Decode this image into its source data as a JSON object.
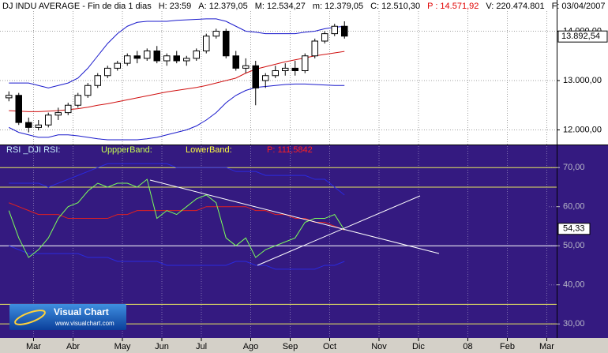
{
  "header": {
    "items": [
      {
        "text": "DJ INDU AVERAGE - Fin de dia 1 dias",
        "color": "#000000"
      },
      {
        "text": "H: 23:59",
        "color": "#000000"
      },
      {
        "text": "A: 12.379,05",
        "color": "#000000"
      },
      {
        "text": "M: 12.534,27",
        "color": "#000000"
      },
      {
        "text": "m: 12.379,05",
        "color": "#000000"
      },
      {
        "text": "C: 12.510,30",
        "color": "#000000"
      },
      {
        "text": "P : 14.571,92",
        "color": "#e00000"
      },
      {
        "text": "V: 220.474.801",
        "color": "#000000"
      },
      {
        "text": "F: 03/04/2007",
        "color": "#000000"
      }
    ]
  },
  "logo": {
    "title": "Visual Chart",
    "url": "www.visualchart.com"
  },
  "chart_data": [
    {
      "type": "candlestick",
      "open": [
        12650,
        12700,
        12150,
        12050,
        12100,
        12300,
        12350,
        12500,
        12700,
        12900,
        13100,
        13250,
        13350,
        13500,
        13450,
        13600,
        13400,
        13500,
        13400,
        13450,
        13600,
        13900,
        14000,
        13500,
        13250,
        13300,
        13000,
        13100,
        13200,
        13250,
        13200,
        13500,
        13800,
        13950,
        14100
      ],
      "high": [
        12780,
        12750,
        12250,
        12200,
        12350,
        12450,
        12550,
        12750,
        12950,
        13150,
        13300,
        13400,
        13550,
        13600,
        13650,
        13700,
        13550,
        13600,
        13500,
        13650,
        13950,
        14050,
        14050,
        13600,
        13450,
        13400,
        13150,
        13300,
        13350,
        13400,
        13550,
        13850,
        14000,
        14150,
        14200
      ],
      "low": [
        12580,
        12100,
        11950,
        11990,
        12050,
        12200,
        12300,
        12450,
        12650,
        12850,
        13050,
        13200,
        13300,
        13350,
        13400,
        13350,
        13300,
        13350,
        13300,
        13400,
        13550,
        13850,
        13450,
        13200,
        13150,
        12500,
        12850,
        13050,
        13100,
        13100,
        13150,
        13450,
        13750,
        13900,
        13850
      ],
      "close": [
        12700,
        12150,
        12050,
        12100,
        12300,
        12350,
        12500,
        12700,
        12900,
        13100,
        13250,
        13350,
        13500,
        13450,
        13600,
        13400,
        13500,
        13400,
        13450,
        13600,
        13900,
        14000,
        13500,
        13250,
        13300,
        12850,
        13100,
        13200,
        13250,
        13200,
        13500,
        13800,
        13950,
        14100,
        13900
      ],
      "up_color": "#ffffff",
      "down_color": "#000000",
      "edge_color": "#000000",
      "overlays": [
        {
          "color": "#1a1acc",
          "values": [
            12950,
            12950,
            12950,
            12900,
            12850,
            12900,
            12950,
            13050,
            13250,
            13500,
            13750,
            13950,
            14100,
            14180,
            14200,
            14200,
            14200,
            14220,
            14230,
            14240,
            14250,
            14250,
            14200,
            14100,
            14000,
            13980,
            13950,
            13950,
            13950,
            13950,
            13980,
            14000,
            14050,
            14080,
            14100
          ]
        },
        {
          "color": "#1a1acc",
          "values": [
            12050,
            11950,
            11900,
            11850,
            11850,
            11900,
            11900,
            11880,
            11850,
            11820,
            11800,
            11800,
            11800,
            11800,
            11820,
            11850,
            11900,
            11950,
            12000,
            12080,
            12200,
            12350,
            12550,
            12700,
            12800,
            12860,
            12880,
            12900,
            12920,
            12930,
            12930,
            12920,
            12910,
            12900,
            12900
          ]
        },
        {
          "color": "#d01010",
          "values": [
            12390,
            12380,
            12370,
            12370,
            12380,
            12390,
            12410,
            12430,
            12460,
            12500,
            12530,
            12570,
            12610,
            12650,
            12690,
            12730,
            12770,
            12800,
            12830,
            12860,
            12900,
            12950,
            13000,
            13050,
            13150,
            13230,
            13280,
            13330,
            13380,
            13420,
            13460,
            13500,
            13530,
            13560,
            13590
          ]
        }
      ],
      "ylim": [
        11704,
        14632
      ],
      "yticks": [
        {
          "value": 12000,
          "label": "12.000,00"
        },
        {
          "value": 13000,
          "label": "13.000,00"
        },
        {
          "value": 14000,
          "label": "14.000,00"
        }
      ],
      "last_label": {
        "value": 13892.54,
        "label": "13.892,54"
      },
      "grid": true
    },
    {
      "type": "line",
      "categories": [
        null,
        null,
        null,
        "Mar",
        null,
        null,
        null,
        "Abr",
        null,
        null,
        null,
        null,
        "May",
        null,
        null,
        null,
        "Jun",
        null,
        null,
        null,
        "Jul",
        null,
        null,
        null,
        null,
        "Ago",
        null,
        null,
        null,
        "Sep",
        null,
        null,
        null,
        "Oct",
        null,
        null,
        null,
        null,
        "Nov",
        null,
        null,
        null,
        "Dic",
        null,
        null,
        null,
        null,
        "08",
        null,
        null,
        null,
        "Feb",
        null,
        null,
        null,
        "Mar"
      ],
      "series": [
        {
          "name": "RSI _DJI RSI:",
          "color": "#7cff5a",
          "label_color": "#c8f0ff",
          "values": [
            59,
            52,
            47,
            49,
            52,
            57,
            60,
            61,
            64,
            66,
            65,
            66,
            66,
            65,
            67,
            57,
            59,
            58,
            60,
            62,
            63,
            61,
            52,
            50,
            52,
            47,
            49,
            50,
            51,
            52,
            56,
            57,
            57,
            58,
            54,
            null,
            null,
            null,
            null,
            null,
            null,
            null,
            null,
            null,
            null,
            null,
            null,
            null,
            null,
            null,
            null,
            null,
            null,
            null,
            null,
            null
          ]
        },
        {
          "name": "UppperBand:",
          "color": "#2a2ae0",
          "label_color": "#c8ff50",
          "values": [
            66,
            66,
            66,
            66,
            65,
            66,
            67,
            68,
            69,
            70,
            71,
            71,
            71,
            71,
            71,
            71,
            71,
            70,
            70,
            70,
            70,
            70,
            70,
            69,
            69,
            69,
            68,
            68,
            68,
            68,
            68,
            67,
            67,
            65,
            63,
            null,
            null,
            null,
            null,
            null,
            null,
            null,
            null,
            null,
            null,
            null,
            null,
            null,
            null,
            null,
            null,
            null,
            null,
            null,
            null,
            null
          ]
        },
        {
          "name": "LowerBand:",
          "color": "#2a2ae0",
          "label_color": "#ffff40",
          "values": [
            50,
            49,
            48,
            48,
            48,
            48,
            48,
            48,
            47,
            47,
            47,
            46,
            46,
            46,
            46,
            46,
            45,
            45,
            45,
            45,
            45,
            45,
            45,
            46,
            46,
            45,
            45,
            44,
            44,
            44,
            44,
            44,
            45,
            45,
            46,
            null,
            null,
            null,
            null,
            null,
            null,
            null,
            null,
            null,
            null,
            null,
            null,
            null,
            null,
            null,
            null,
            null,
            null,
            null,
            null,
            null
          ]
        },
        {
          "name": "P: 111,5842",
          "color": "#e02020",
          "label_color": "#ff2020",
          "values": [
            61,
            60,
            59,
            58,
            58,
            58,
            57,
            57,
            57,
            57,
            57,
            58,
            58,
            59,
            59,
            59,
            59,
            59,
            59,
            59,
            60,
            60,
            60,
            60,
            60,
            59,
            59,
            58,
            58,
            57,
            57,
            56,
            56,
            55,
            54,
            null,
            null,
            null,
            null,
            null,
            null,
            null,
            null,
            null,
            null,
            null,
            null,
            null,
            null,
            null,
            null,
            null,
            null,
            null,
            null,
            null
          ]
        }
      ],
      "levels": [
        {
          "value": 70,
          "color": "#e8e860"
        },
        {
          "value": 65,
          "color": "#e8e860"
        },
        {
          "value": 50,
          "color": "#ffffff"
        },
        {
          "value": 35,
          "color": "#e8e860"
        },
        {
          "value": 30,
          "color": "#e8e860"
        }
      ],
      "ylim": [
        26.4,
        75.7
      ],
      "yticks": [
        {
          "value": 30,
          "label": "30,00"
        },
        {
          "value": 40,
          "label": "40,00"
        },
        {
          "value": 50,
          "label": "50,00"
        },
        {
          "value": 60,
          "label": "60,00"
        },
        {
          "value": 70,
          "label": "70,00"
        }
      ],
      "last_label": {
        "value": 54.33,
        "label": "54,33"
      },
      "grid": true
    }
  ]
}
